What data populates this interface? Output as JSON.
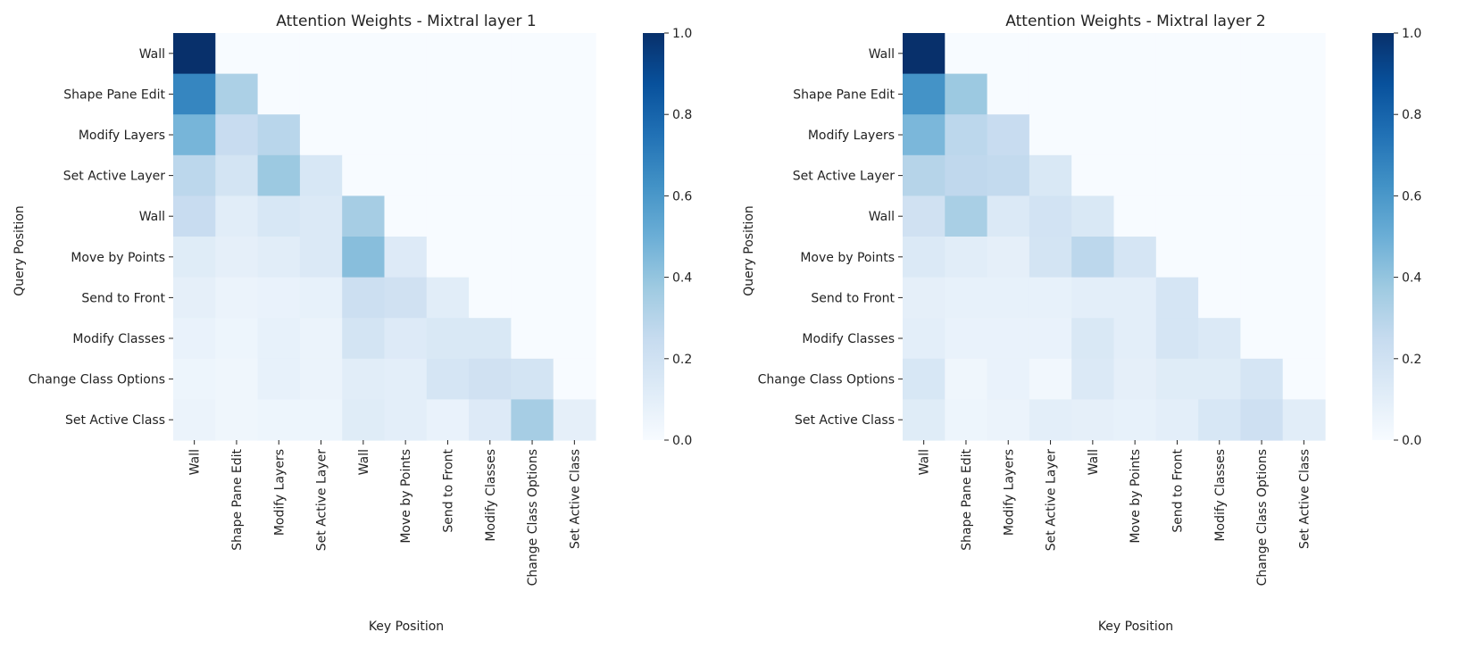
{
  "chart_data": [
    {
      "type": "heatmap",
      "title": "Attention Weights - Mixtral layer 1",
      "xlabel": "Key Position",
      "ylabel": "Query Position",
      "x_labels": [
        "Wall",
        "Shape Pane Edit",
        "Modify Layers",
        "Set Active Layer",
        "Wall",
        "Move by Points",
        "Send to Front",
        "Modify Classes",
        "Change Class Options",
        "Set Active Class"
      ],
      "y_labels": [
        "Wall",
        "Shape Pane Edit",
        "Modify Layers",
        "Set Active Layer",
        "Wall",
        "Move by Points",
        "Send to Front",
        "Modify Classes",
        "Change Class Options",
        "Set Active Class"
      ],
      "colorbar": {
        "min": 0.0,
        "max": 1.0,
        "ticks": [
          "0.0",
          "0.2",
          "0.4",
          "0.6",
          "0.8",
          "1.0"
        ],
        "colormap": "Blues"
      },
      "values": [
        [
          1.0,
          0,
          0,
          0,
          0,
          0,
          0,
          0,
          0,
          0
        ],
        [
          0.67,
          0.33,
          0,
          0,
          0,
          0,
          0,
          0,
          0,
          0
        ],
        [
          0.47,
          0.24,
          0.29,
          0,
          0,
          0,
          0,
          0,
          0,
          0
        ],
        [
          0.28,
          0.18,
          0.38,
          0.16,
          0,
          0,
          0,
          0,
          0,
          0
        ],
        [
          0.24,
          0.11,
          0.16,
          0.14,
          0.35,
          0,
          0,
          0,
          0,
          0
        ],
        [
          0.12,
          0.09,
          0.11,
          0.14,
          0.43,
          0.13,
          0,
          0,
          0,
          0
        ],
        [
          0.09,
          0.06,
          0.07,
          0.08,
          0.22,
          0.2,
          0.11,
          0,
          0,
          0
        ],
        [
          0.07,
          0.05,
          0.08,
          0.06,
          0.18,
          0.13,
          0.15,
          0.15,
          0,
          0
        ],
        [
          0.05,
          0.04,
          0.08,
          0.06,
          0.11,
          0.1,
          0.17,
          0.2,
          0.18,
          0
        ],
        [
          0.06,
          0.04,
          0.05,
          0.05,
          0.12,
          0.1,
          0.07,
          0.13,
          0.35,
          0.09
        ]
      ]
    },
    {
      "type": "heatmap",
      "title": "Attention Weights - Mixtral layer 2",
      "xlabel": "Key Position",
      "ylabel": "Query Position",
      "x_labels": [
        "Wall",
        "Shape Pane Edit",
        "Modify Layers",
        "Set Active Layer",
        "Wall",
        "Move by Points",
        "Send to Front",
        "Modify Classes",
        "Change Class Options",
        "Set Active Class"
      ],
      "y_labels": [
        "Wall",
        "Shape Pane Edit",
        "Modify Layers",
        "Set Active Layer",
        "Wall",
        "Move by Points",
        "Send to Front",
        "Modify Classes",
        "Change Class Options",
        "Set Active Class"
      ],
      "colorbar": {
        "min": 0.0,
        "max": 1.0,
        "ticks": [
          "0.0",
          "0.2",
          "0.4",
          "0.6",
          "0.8",
          "1.0"
        ],
        "colormap": "Blues"
      },
      "values": [
        [
          1.0,
          0,
          0,
          0,
          0,
          0,
          0,
          0,
          0,
          0
        ],
        [
          0.62,
          0.38,
          0,
          0,
          0,
          0,
          0,
          0,
          0,
          0
        ],
        [
          0.46,
          0.28,
          0.24,
          0,
          0,
          0,
          0,
          0,
          0,
          0
        ],
        [
          0.3,
          0.27,
          0.26,
          0.15,
          0,
          0,
          0,
          0,
          0,
          0
        ],
        [
          0.2,
          0.34,
          0.14,
          0.19,
          0.15,
          0,
          0,
          0,
          0,
          0
        ],
        [
          0.14,
          0.11,
          0.09,
          0.18,
          0.28,
          0.17,
          0,
          0,
          0,
          0
        ],
        [
          0.09,
          0.08,
          0.08,
          0.08,
          0.1,
          0.1,
          0.17,
          0,
          0,
          0
        ],
        [
          0.1,
          0.07,
          0.07,
          0.07,
          0.15,
          0.1,
          0.17,
          0.14,
          0,
          0
        ],
        [
          0.16,
          0.04,
          0.07,
          0.03,
          0.14,
          0.09,
          0.12,
          0.12,
          0.17,
          0
        ],
        [
          0.12,
          0.05,
          0.06,
          0.1,
          0.09,
          0.08,
          0.1,
          0.16,
          0.21,
          0.11
        ]
      ]
    }
  ]
}
